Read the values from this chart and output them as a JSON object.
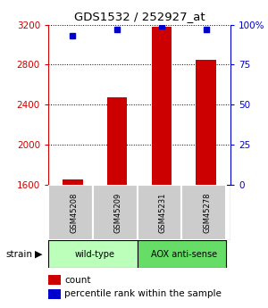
{
  "title": "GDS1532 / 252927_at",
  "samples": [
    "GSM45208",
    "GSM45209",
    "GSM45231",
    "GSM45278"
  ],
  "counts": [
    1650,
    2470,
    3175,
    2850
  ],
  "percentiles": [
    93,
    97,
    99,
    97
  ],
  "ylim_left": [
    1600,
    3200
  ],
  "ylim_right": [
    0,
    100
  ],
  "yticks_left": [
    1600,
    2000,
    2400,
    2800,
    3200
  ],
  "yticks_right": [
    0,
    25,
    50,
    75,
    100
  ],
  "bar_color": "#cc0000",
  "dot_color": "#0000cc",
  "bar_width": 0.45,
  "sample_box_color": "#cccccc",
  "group_colors": [
    "#bbffbb",
    "#66dd66"
  ],
  "group_labels": [
    "wild-type",
    "AOX anti-sense"
  ],
  "strain_label": "strain",
  "legend_count_label": "count",
  "legend_percentile_label": "percentile rank within the sample",
  "left_tick_color": "#cc0000",
  "right_tick_color": "#0000cc"
}
